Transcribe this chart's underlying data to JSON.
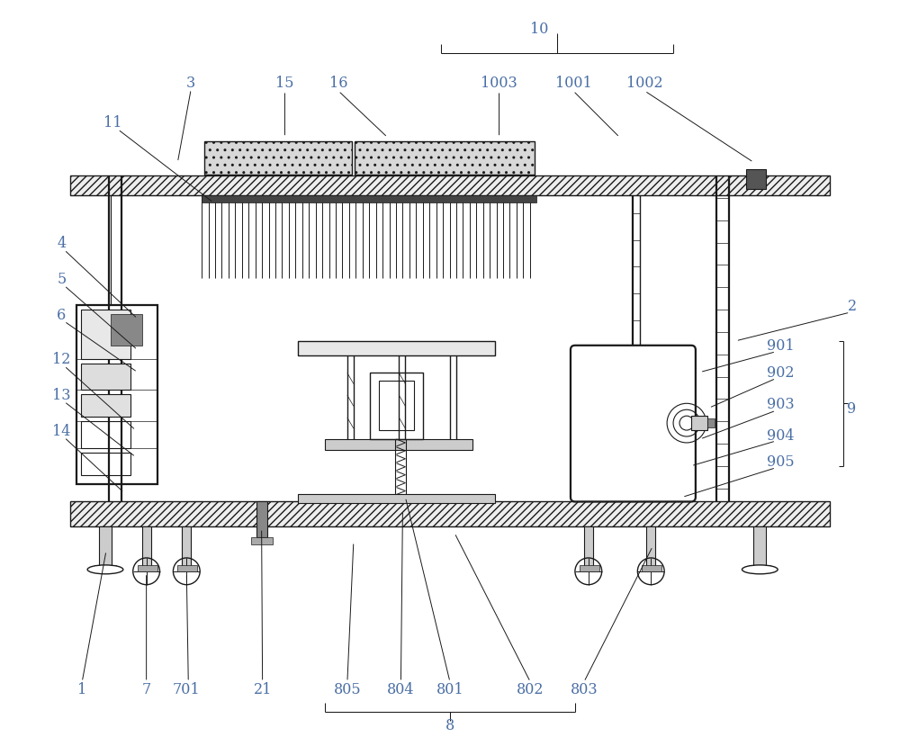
{
  "bg_color": "#ffffff",
  "line_color": "#1a1a1a",
  "label_color": "#4a6fa5",
  "figsize": [
    10.0,
    8.2
  ],
  "dpi": 100,
  "lw": 1.0,
  "lw2": 1.6
}
